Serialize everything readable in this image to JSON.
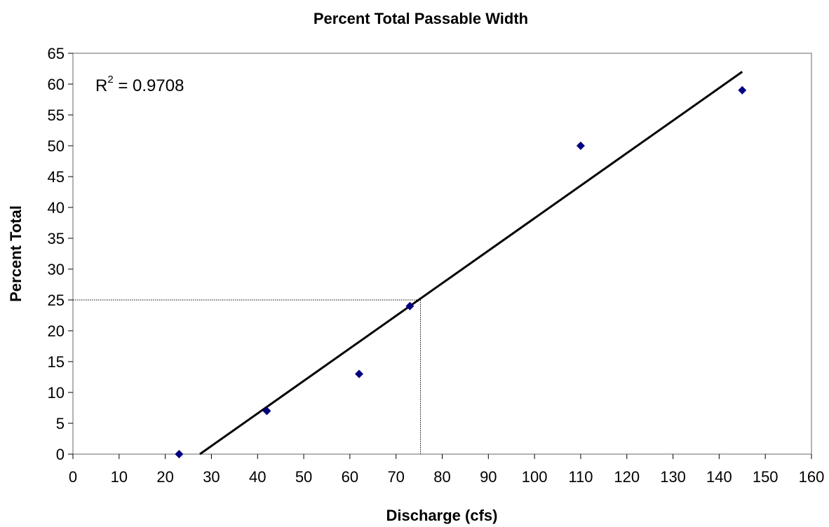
{
  "chart_data": {
    "type": "scatter",
    "title": "Percent Total Passable Width",
    "xlabel": "Discharge (cfs)",
    "ylabel": "Percent Total",
    "xlim": [
      0,
      160
    ],
    "ylim": [
      0,
      65
    ],
    "xticks": [
      0,
      10,
      20,
      30,
      40,
      50,
      60,
      70,
      80,
      90,
      100,
      110,
      120,
      130,
      140,
      150,
      160
    ],
    "yticks": [
      0,
      5,
      10,
      15,
      20,
      25,
      30,
      35,
      40,
      45,
      50,
      55,
      60,
      65
    ],
    "grid": false,
    "marker_color": "#000080",
    "points": [
      {
        "x": 23,
        "y": 0
      },
      {
        "x": 42,
        "y": 7
      },
      {
        "x": 62,
        "y": 13
      },
      {
        "x": 73,
        "y": 24
      },
      {
        "x": 110,
        "y": 50
      },
      {
        "x": 145,
        "y": 59
      }
    ],
    "trendline": {
      "x_start": 27.5,
      "y_start": 0,
      "x_end": 145,
      "y_end": 62
    },
    "guide": {
      "x": 75.3,
      "y": 25
    },
    "annotation": {
      "base": "R",
      "sup": "2",
      "rest": " = 0.9708"
    }
  }
}
